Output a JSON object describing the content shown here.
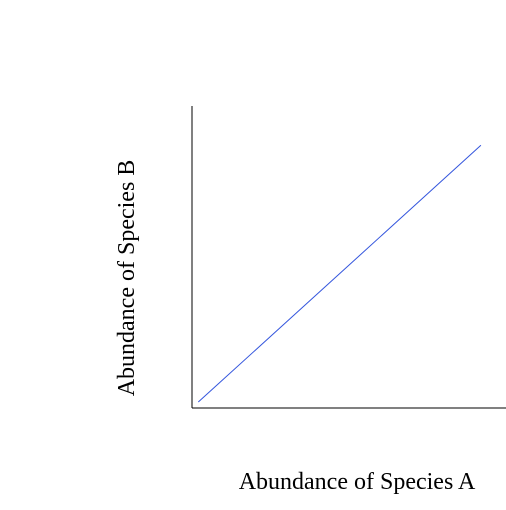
{
  "chart_data": {
    "type": "line",
    "title": "",
    "xlabel": "Abundance of Species A",
    "ylabel": "Abundance of Species B",
    "xlim": [
      0,
      1
    ],
    "ylim": [
      0,
      1
    ],
    "grid": false,
    "legend": "none",
    "series": [
      {
        "color": "#3355dd",
        "x": [
          0.02,
          0.92
        ],
        "y": [
          0.02,
          0.87
        ]
      }
    ]
  }
}
